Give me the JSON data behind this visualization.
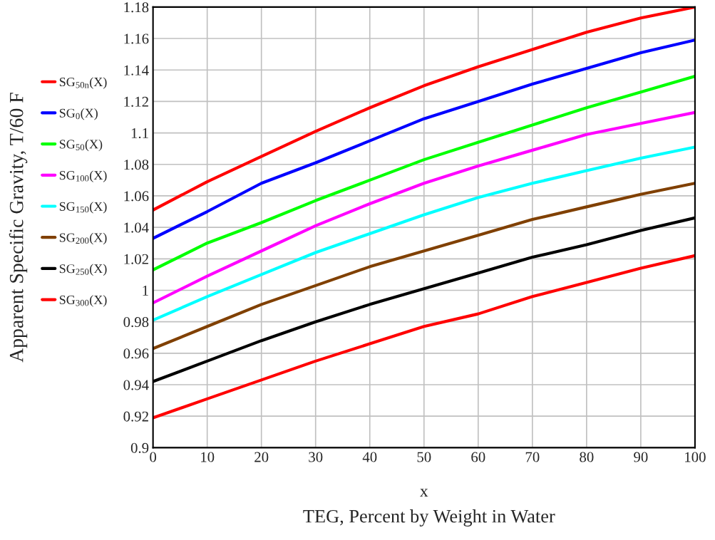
{
  "chart_data": {
    "type": "line",
    "xlabel": "x",
    "ylabel": "Apparent Specific Gravity, T/60 F",
    "annotations": [
      "TEG, Percent by Weight in Water"
    ],
    "x": [
      0,
      10,
      20,
      30,
      40,
      50,
      60,
      70,
      80,
      90,
      100
    ],
    "series": [
      {
        "name": "SG$_{50n}$(X)",
        "color": "#ff0000",
        "values": [
          1.051,
          1.069,
          1.085,
          1.101,
          1.116,
          1.13,
          1.142,
          1.153,
          1.164,
          1.173,
          1.18
        ]
      },
      {
        "name": "SG$_{0}$(X)",
        "color": "#0000ff",
        "values": [
          1.033,
          1.05,
          1.068,
          1.081,
          1.095,
          1.109,
          1.12,
          1.131,
          1.141,
          1.151,
          1.159
        ]
      },
      {
        "name": "SG$_{50}$(X)",
        "color": "#00ff00",
        "values": [
          1.013,
          1.03,
          1.043,
          1.057,
          1.07,
          1.083,
          1.094,
          1.105,
          1.116,
          1.126,
          1.136
        ]
      },
      {
        "name": "SG$_{100}$(X)",
        "color": "#ff00ff",
        "values": [
          0.992,
          1.009,
          1.025,
          1.041,
          1.055,
          1.068,
          1.079,
          1.089,
          1.099,
          1.106,
          1.113
        ]
      },
      {
        "name": "SG$_{150}$(X)",
        "color": "#00ffff",
        "values": [
          0.981,
          0.996,
          1.01,
          1.024,
          1.036,
          1.048,
          1.059,
          1.068,
          1.076,
          1.084,
          1.091
        ]
      },
      {
        "name": "SG$_{200}$(X)",
        "color": "#804000",
        "values": [
          0.963,
          0.977,
          0.991,
          1.003,
          1.015,
          1.025,
          1.035,
          1.045,
          1.053,
          1.061,
          1.068
        ]
      },
      {
        "name": "SG$_{250}$(X)",
        "color": "#000000",
        "values": [
          0.942,
          0.955,
          0.968,
          0.98,
          0.991,
          1.001,
          1.011,
          1.021,
          1.029,
          1.038,
          1.046
        ]
      },
      {
        "name": "SG$_{300}$(X)",
        "color": "#ff0000",
        "values": [
          0.919,
          0.931,
          0.943,
          0.955,
          0.966,
          0.977,
          0.985,
          0.996,
          1.005,
          1.014,
          1.022
        ]
      }
    ],
    "xlim": [
      0,
      100
    ],
    "ylim": [
      0.9,
      1.18
    ],
    "xticks": [
      0,
      10,
      20,
      30,
      40,
      50,
      60,
      70,
      80,
      90,
      100
    ],
    "yticks": [
      0.9,
      0.92,
      0.94,
      0.96,
      0.98,
      1,
      1.02,
      1.04,
      1.06,
      1.08,
      1.1,
      1.12,
      1.14,
      1.16,
      1.18
    ],
    "grid": true,
    "legend": "left",
    "marker": "none",
    "line_style": "solid"
  }
}
